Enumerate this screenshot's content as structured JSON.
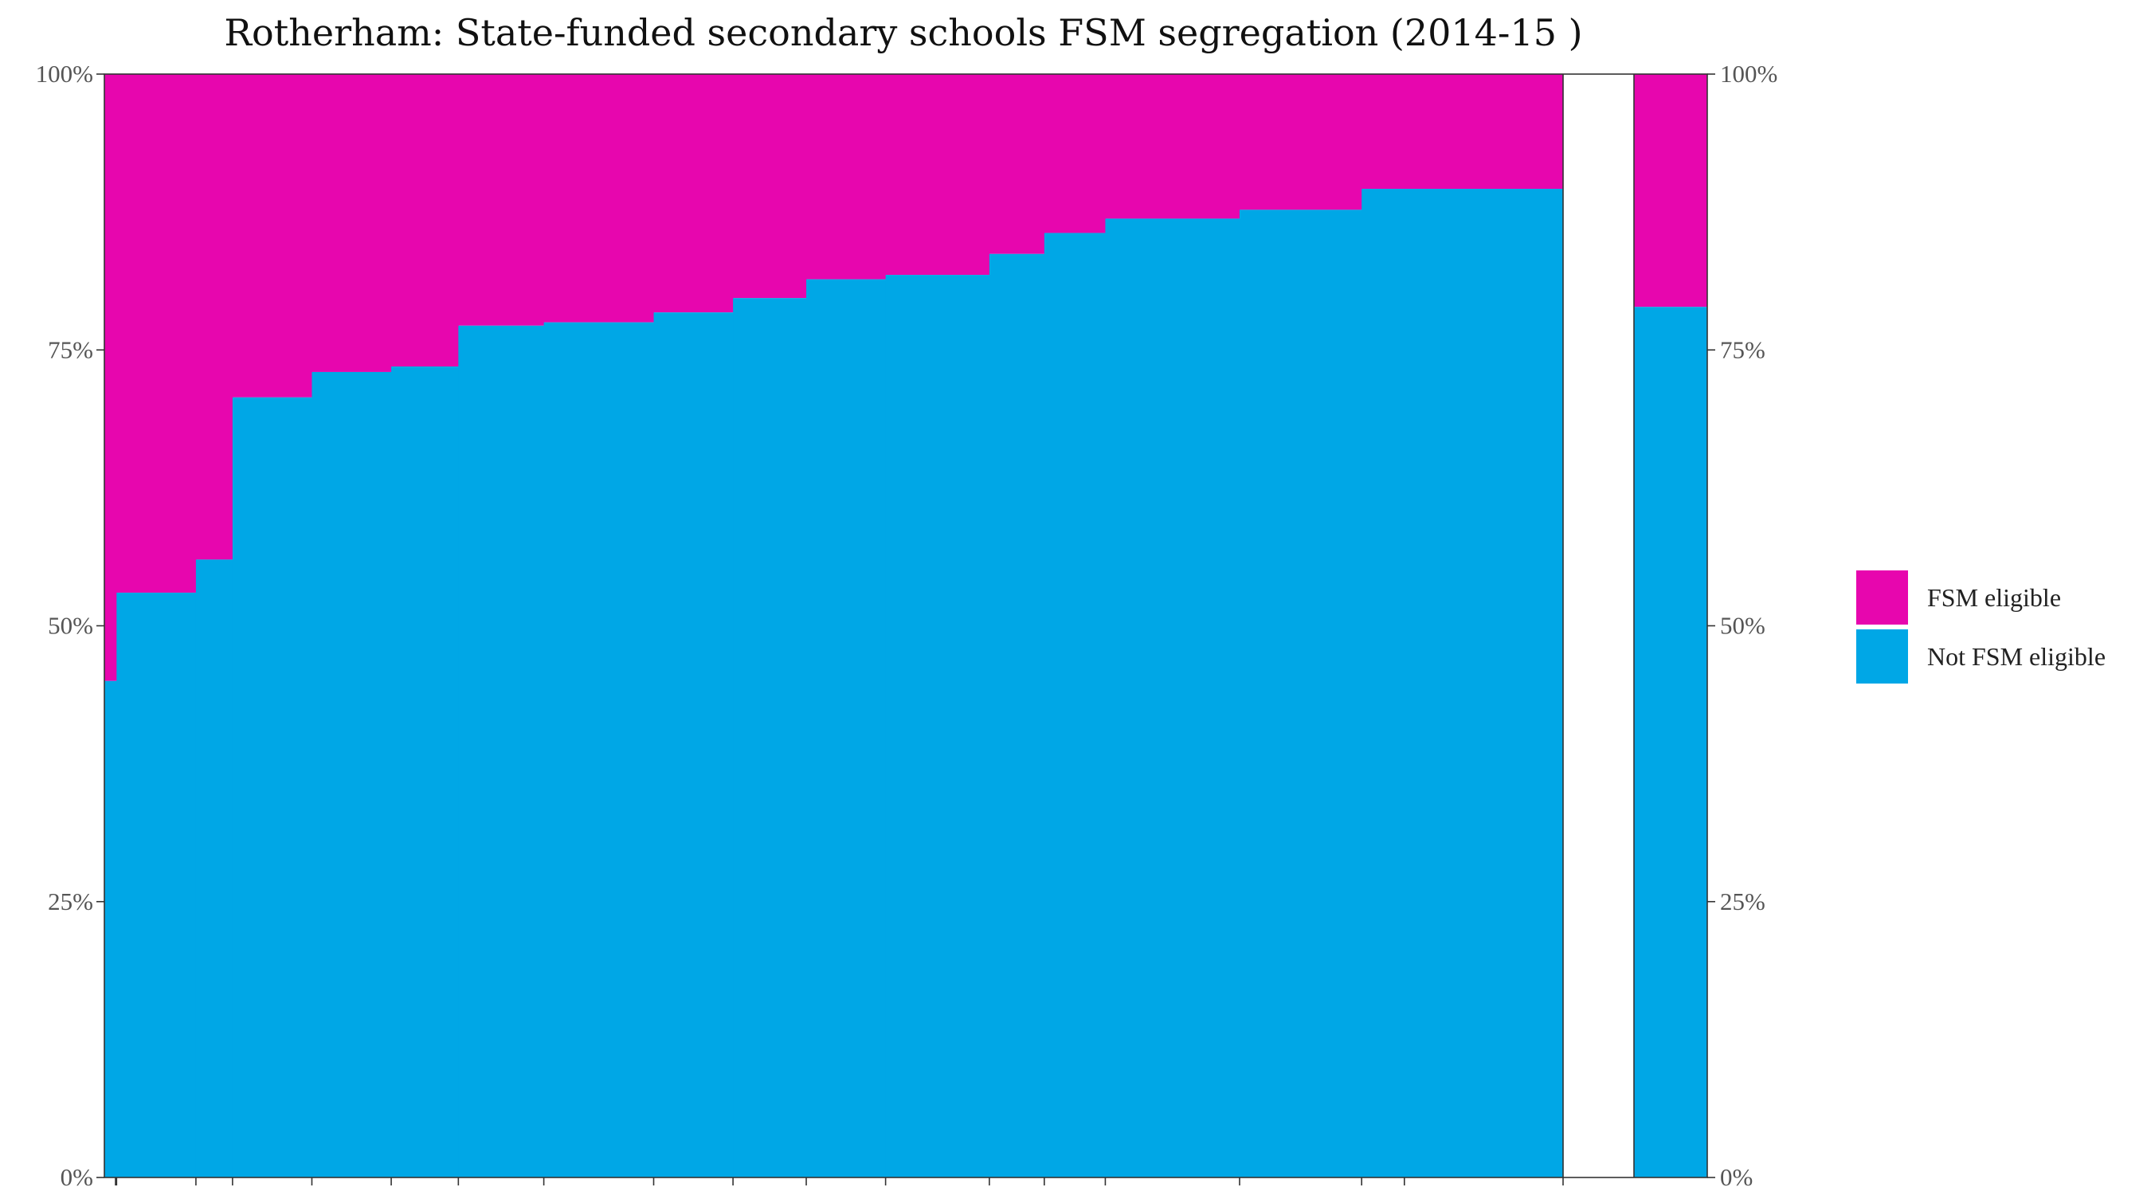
{
  "chart_data": {
    "type": "bar",
    "title": "Rotherham: State-funded secondary schools FSM segregation (2014-15 )",
    "xlabel": "",
    "ylabel": "",
    "ylim": [
      0,
      100
    ],
    "y_tick_labels": [
      "0%",
      "25%",
      "50%",
      "75%",
      "100%"
    ],
    "legend_position": "right",
    "series": [
      {
        "name": "FSM eligible",
        "color": "#E706AE"
      },
      {
        "name": "Not FSM eligible",
        "color": "#00A7E6"
      }
    ],
    "schools": {
      "relative_widths": [
        2,
        13,
        6,
        13,
        13,
        11,
        14,
        18,
        13,
        12,
        13,
        17,
        9,
        10,
        22,
        20,
        7,
        26
      ],
      "not_fsm_eligible_pct": [
        45,
        53,
        56,
        70.7,
        73,
        73.5,
        77.2,
        77.5,
        78.4,
        79.7,
        81.4,
        81.8,
        83.7,
        85.6,
        86.9,
        87.7,
        89.6,
        89.6
      ]
    },
    "local_authority_overall": {
      "not_fsm_eligible_pct": 78.9
    }
  }
}
